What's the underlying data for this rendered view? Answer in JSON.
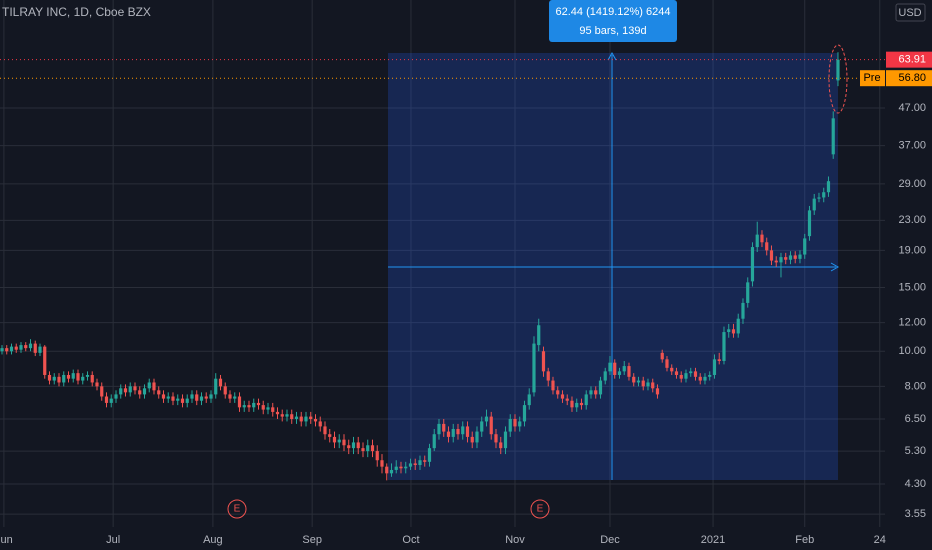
{
  "chart_data": {
    "type": "candlestick",
    "title": "TILRAY INC, 1D, Cboe BZX",
    "currency": "USD",
    "log_y": true,
    "grid": true,
    "up_color": "#26a69a",
    "down_color": "#ef5350",
    "xlim": [
      -0.42,
      185.9
    ],
    "xticks": [
      {
        "value": 0.4,
        "label": "Jun"
      },
      {
        "value": 23.4,
        "label": "Jul"
      },
      {
        "value": 44.4,
        "label": "Aug"
      },
      {
        "value": 65.3,
        "label": "Sep"
      },
      {
        "value": 86.1,
        "label": "Oct"
      },
      {
        "value": 108,
        "label": "Nov"
      },
      {
        "value": 128,
        "label": "Dec"
      },
      {
        "value": 149.7,
        "label": "2021"
      },
      {
        "value": 169,
        "label": "Feb"
      },
      {
        "value": 184.8,
        "label": "24"
      }
    ],
    "ylim": [
      3.27,
      93.4
    ],
    "yticks": [
      3.55,
      {
        "value": 4.3,
        "label": "4.30"
      },
      {
        "value": 5.3,
        "label": "5.30"
      },
      {
        "value": 6.5,
        "label": "6.50"
      },
      {
        "value": 8,
        "label": "8.00"
      },
      {
        "value": 10,
        "label": "10.00"
      },
      {
        "value": 12,
        "label": "12.00"
      },
      {
        "value": 15,
        "label": "15.00"
      },
      {
        "value": 19,
        "label": "19.00"
      },
      {
        "value": 23,
        "label": "23.00"
      },
      {
        "value": 29,
        "label": "29.00"
      },
      {
        "value": 37,
        "label": "37.00"
      },
      {
        "value": 47,
        "label": "47.00"
      }
    ],
    "x": [
      0,
      1,
      2,
      3,
      4,
      5,
      6,
      7,
      8,
      9,
      10,
      11,
      12,
      13,
      14,
      15,
      16,
      17,
      18,
      19,
      20,
      21,
      22,
      23,
      24,
      25,
      26,
      27,
      28,
      29,
      30,
      31,
      32,
      33,
      34,
      35,
      36,
      37,
      38,
      39,
      40,
      41,
      42,
      43,
      44,
      45,
      46,
      47,
      48,
      49,
      50,
      51,
      52,
      53,
      54,
      55,
      56,
      57,
      58,
      59,
      60,
      61,
      62,
      63,
      64,
      65,
      66,
      67,
      68,
      69,
      70,
      71,
      72,
      73,
      74,
      75,
      76,
      77,
      78,
      79,
      80,
      81,
      82,
      83,
      84,
      85,
      86,
      87,
      88,
      89,
      90,
      91,
      92,
      93,
      94,
      95,
      96,
      97,
      98,
      99,
      100,
      101,
      102,
      103,
      104,
      105,
      106,
      107,
      108,
      109,
      110,
      111,
      112,
      113,
      114,
      115,
      116,
      117,
      118,
      119,
      120,
      121,
      122,
      123,
      124,
      125,
      126,
      127,
      128,
      129,
      130,
      131,
      132,
      133,
      134,
      135,
      136,
      137,
      138,
      139,
      140,
      141,
      142,
      143,
      144,
      145,
      146,
      147,
      148,
      149,
      150,
      151,
      152,
      153,
      154,
      155,
      156,
      157,
      158,
      159,
      160,
      161,
      162,
      163,
      164,
      165,
      166,
      167,
      168,
      169,
      170,
      171,
      172,
      173,
      174,
      175,
      176
    ],
    "open": [
      10.0,
      10.2,
      10.0,
      10.3,
      10.1,
      10.4,
      10.2,
      10.5,
      9.9,
      10.3,
      8.6,
      8.3,
      8.5,
      8.2,
      8.6,
      8.4,
      8.7,
      8.3,
      8.5,
      8.6,
      8.2,
      8.0,
      7.5,
      7.2,
      7.4,
      7.6,
      7.9,
      7.7,
      8.0,
      7.8,
      7.6,
      7.9,
      8.2,
      7.8,
      7.6,
      7.4,
      7.5,
      7.3,
      7.4,
      7.2,
      7.4,
      7.6,
      7.3,
      7.5,
      7.4,
      7.6,
      8.4,
      8.0,
      7.6,
      7.4,
      7.5,
      7.0,
      7.1,
      7.0,
      7.2,
      7.1,
      6.9,
      7.0,
      6.8,
      6.7,
      6.6,
      6.7,
      6.5,
      6.6,
      6.4,
      6.6,
      6.5,
      6.4,
      6.2,
      5.9,
      5.8,
      5.6,
      5.7,
      5.5,
      5.4,
      5.6,
      5.4,
      5.3,
      5.5,
      5.3,
      5.0,
      4.8,
      4.6,
      4.7,
      4.8,
      4.75,
      4.8,
      4.9,
      4.85,
      5.0,
      4.95,
      5.4,
      5.9,
      6.3,
      6.0,
      5.8,
      6.1,
      5.9,
      6.2,
      5.8,
      5.6,
      6.0,
      6.4,
      6.6,
      5.9,
      5.6,
      5.4,
      6.0,
      6.5,
      6.2,
      6.4,
      7.1,
      7.7,
      10.4,
      10.0,
      8.8,
      8.3,
      7.8,
      7.6,
      7.4,
      7.3,
      7.0,
      7.2,
      7.1,
      7.6,
      7.8,
      7.6,
      8.3,
      8.8,
      9.3,
      8.6,
      8.8,
      9.1,
      8.5,
      8.2,
      8.3,
      8.0,
      8.2,
      7.9,
      9.9,
      9.5,
      9.0,
      8.8,
      8.6,
      8.4,
      8.7,
      8.8,
      8.5,
      8.3,
      8.5,
      8.6,
      9.5,
      9.4,
      11.3,
      11.5,
      11.2,
      12.3,
      13.6,
      15.6,
      19.4,
      21.0,
      20.0,
      19.0,
      17.8,
      17.6,
      18.2,
      17.9,
      18.4,
      18.0,
      18.5,
      20.8,
      24.5,
      26.4,
      26.6,
      27.5,
      35.0,
      56.0
    ],
    "high": [
      10.4,
      10.4,
      10.5,
      10.5,
      10.6,
      10.6,
      10.8,
      10.7,
      10.5,
      10.4,
      8.8,
      8.7,
      8.7,
      8.8,
      8.8,
      8.9,
      8.9,
      8.7,
      8.8,
      8.8,
      8.4,
      8.2,
      7.7,
      7.6,
      7.8,
      8.1,
      8.1,
      8.2,
      8.2,
      8.0,
      8.1,
      8.4,
      8.4,
      8.0,
      7.8,
      7.7,
      7.7,
      7.6,
      7.6,
      7.6,
      7.8,
      7.8,
      7.7,
      7.7,
      7.8,
      8.7,
      8.6,
      8.2,
      7.8,
      7.7,
      7.7,
      7.3,
      7.3,
      7.4,
      7.4,
      7.3,
      7.2,
      7.2,
      7.0,
      6.9,
      6.9,
      6.9,
      6.8,
      6.8,
      6.8,
      6.8,
      6.7,
      6.6,
      6.4,
      6.1,
      6.0,
      5.9,
      5.9,
      5.7,
      5.8,
      5.8,
      5.6,
      5.7,
      5.7,
      5.5,
      5.2,
      4.9,
      4.9,
      5.0,
      4.95,
      4.95,
      5.05,
      5.05,
      5.15,
      5.15,
      5.55,
      6.1,
      6.5,
      6.5,
      6.2,
      6.3,
      6.3,
      6.4,
      6.4,
      6.0,
      6.2,
      6.6,
      6.9,
      6.8,
      6.1,
      5.8,
      6.2,
      6.7,
      6.7,
      6.6,
      7.3,
      7.9,
      11.0,
      12.3,
      10.3,
      9.0,
      8.5,
      8.0,
      7.8,
      7.6,
      7.5,
      7.4,
      7.4,
      7.8,
      8.0,
      8.0,
      8.5,
      9.0,
      9.7,
      9.5,
      9.0,
      9.4,
      9.3,
      8.7,
      8.5,
      8.5,
      8.4,
      8.4,
      8.1,
      10.1,
      9.7,
      9.2,
      9.0,
      8.8,
      8.9,
      9.0,
      9.0,
      8.7,
      8.7,
      8.8,
      9.8,
      9.9,
      11.7,
      11.9,
      11.9,
      12.7,
      14.0,
      16.0,
      20.0,
      22.8,
      21.6,
      20.6,
      19.6,
      18.3,
      18.7,
      18.7,
      18.9,
      18.9,
      19.0,
      21.1,
      25.2,
      27.2,
      27.4,
      28.3,
      30.4,
      46.0,
      67.0
    ],
    "low": [
      9.8,
      9.8,
      9.8,
      9.9,
      9.9,
      10.0,
      10.0,
      9.7,
      9.7,
      8.4,
      8.1,
      8.1,
      8.0,
      8.0,
      8.2,
      8.2,
      8.1,
      8.1,
      8.3,
      8.0,
      7.8,
      7.3,
      7.0,
      7.0,
      7.2,
      7.4,
      7.5,
      7.5,
      7.6,
      7.4,
      7.4,
      7.7,
      7.6,
      7.4,
      7.2,
      7.2,
      7.1,
      7.1,
      7.0,
      7.0,
      7.2,
      7.1,
      7.1,
      7.2,
      7.2,
      7.4,
      7.8,
      7.4,
      7.2,
      7.2,
      6.8,
      6.8,
      6.8,
      6.8,
      6.9,
      6.7,
      6.7,
      6.6,
      6.5,
      6.4,
      6.4,
      6.3,
      6.3,
      6.2,
      6.2,
      6.3,
      6.2,
      6.0,
      5.7,
      5.6,
      5.4,
      5.4,
      5.3,
      5.2,
      5.2,
      5.2,
      5.1,
      5.1,
      5.1,
      4.8,
      4.6,
      4.4,
      4.5,
      4.6,
      4.6,
      4.6,
      4.7,
      4.7,
      4.7,
      4.8,
      4.8,
      5.3,
      5.7,
      5.8,
      5.6,
      5.6,
      5.7,
      5.7,
      5.6,
      5.4,
      5.4,
      5.8,
      6.2,
      5.7,
      5.4,
      5.2,
      5.2,
      5.8,
      6.0,
      6.0,
      6.2,
      6.9,
      7.5,
      10.0,
      8.5,
      8.0,
      7.6,
      7.4,
      7.2,
      7.1,
      6.8,
      6.8,
      6.9,
      6.9,
      7.4,
      7.4,
      7.4,
      8.1,
      8.6,
      8.4,
      8.4,
      8.6,
      8.3,
      8.0,
      8.0,
      7.8,
      7.8,
      7.7,
      7.4,
      9.3,
      8.8,
      8.6,
      8.4,
      8.2,
      8.2,
      8.5,
      8.3,
      8.1,
      8.1,
      8.3,
      8.4,
      9.2,
      9.2,
      10.9,
      10.9,
      10.9,
      11.9,
      13.2,
      15.1,
      18.8,
      19.4,
      18.4,
      17.3,
      17.1,
      16.0,
      17.4,
      17.4,
      17.5,
      17.5,
      18.0,
      20.2,
      23.8,
      25.8,
      25.8,
      26.7,
      34.0,
      54.0
    ],
    "close": [
      10.2,
      10.0,
      10.3,
      10.1,
      10.4,
      10.2,
      10.5,
      9.9,
      10.3,
      8.6,
      8.3,
      8.5,
      8.2,
      8.6,
      8.4,
      8.7,
      8.3,
      8.5,
      8.6,
      8.2,
      8.0,
      7.5,
      7.2,
      7.4,
      7.6,
      7.9,
      7.7,
      8.0,
      7.8,
      7.6,
      7.9,
      8.2,
      7.8,
      7.6,
      7.4,
      7.5,
      7.3,
      7.4,
      7.2,
      7.4,
      7.6,
      7.3,
      7.5,
      7.4,
      7.6,
      8.4,
      8.0,
      7.6,
      7.4,
      7.5,
      7.0,
      7.1,
      7.0,
      7.2,
      7.1,
      6.9,
      7.0,
      6.8,
      6.7,
      6.6,
      6.7,
      6.5,
      6.6,
      6.4,
      6.6,
      6.5,
      6.4,
      6.2,
      5.9,
      5.8,
      5.6,
      5.7,
      5.5,
      5.4,
      5.6,
      5.4,
      5.3,
      5.5,
      5.3,
      5.0,
      4.8,
      4.6,
      4.7,
      4.8,
      4.75,
      4.8,
      4.9,
      4.85,
      5.0,
      4.95,
      5.4,
      5.9,
      6.3,
      6.0,
      5.8,
      6.1,
      5.9,
      6.2,
      5.8,
      5.6,
      6.0,
      6.4,
      6.6,
      5.9,
      5.6,
      5.4,
      6.0,
      6.5,
      6.2,
      6.4,
      7.1,
      7.6,
      10.5,
      11.8,
      8.8,
      8.3,
      7.8,
      7.6,
      7.4,
      7.3,
      7.0,
      7.2,
      7.1,
      7.6,
      7.8,
      7.6,
      8.3,
      8.8,
      9.3,
      8.6,
      8.8,
      9.1,
      8.5,
      8.2,
      8.3,
      8.0,
      8.2,
      7.9,
      7.6,
      9.5,
      9.0,
      8.8,
      8.6,
      8.4,
      8.7,
      8.8,
      8.5,
      8.3,
      8.5,
      8.6,
      9.5,
      9.4,
      11.3,
      11.5,
      11.2,
      12.3,
      13.6,
      15.5,
      19.4,
      21.0,
      20.0,
      19.0,
      17.8,
      17.6,
      18.2,
      17.9,
      18.4,
      18.0,
      18.5,
      20.5,
      24.5,
      26.4,
      26.6,
      27.5,
      29.5,
      44.0,
      63.91
    ],
    "last_price": 63.91,
    "last_price_color": "#f23645",
    "premarket": {
      "name": "Pre",
      "value": 56.8,
      "label": "56.80",
      "color": "#ff9800"
    },
    "measure": {
      "line1": "62.44 (1419.12%) 6244",
      "line2": "95 bars, 139d"
    },
    "events": [
      {
        "label": "E"
      },
      {
        "label": "E"
      }
    ]
  }
}
